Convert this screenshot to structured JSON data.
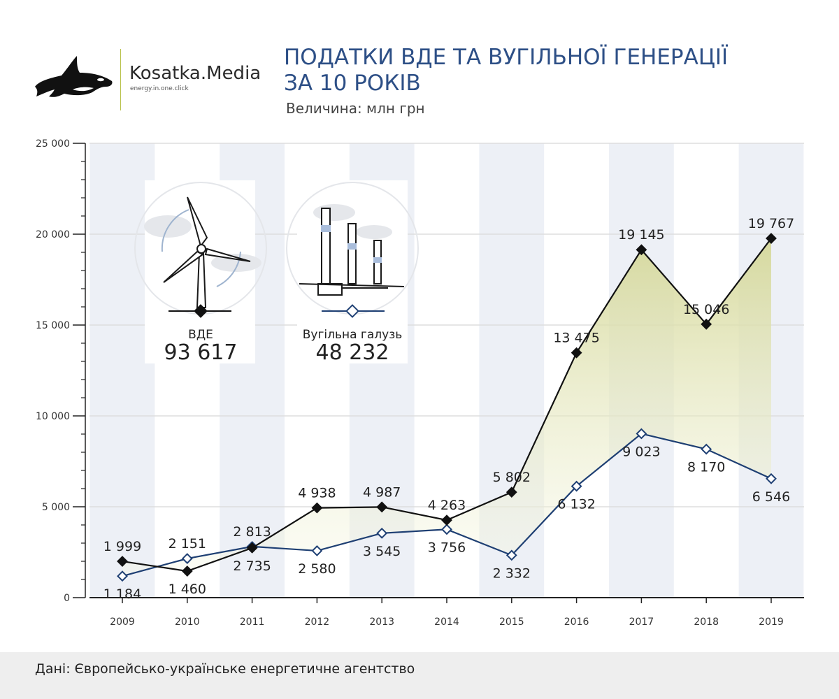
{
  "header": {
    "brand_name": "Kosatka.Media",
    "brand_tagline": "energy.in.one.click",
    "title_line1": "ПОДАТКИ ВДЕ ТА ВУГІЛЬНОЇ ГЕНЕРАЦІЇ",
    "title_line2": "ЗА 10 РОКІВ",
    "subtitle": "Величина: млн грн"
  },
  "legend": {
    "res_name": "ВДЕ",
    "res_total": "93 617",
    "coal_name": "Вугільна галузь",
    "coal_total": "48 232",
    "res_icon": "wind-turbine-icon",
    "coal_icon": "power-plant-chimneys-icon"
  },
  "footer": {
    "source": "Дані: Європейсько-українське енергетичне агентство"
  },
  "colors": {
    "res": "#111111",
    "coal": "#1e3f73",
    "title": "#2d4f86",
    "fill": "#d9dba2",
    "band": "#edf0f6",
    "logo_line": "#b8c24a"
  },
  "chart_data": {
    "type": "line",
    "categories": [
      "2009",
      "2010",
      "2011",
      "2012",
      "2013",
      "2014",
      "2015",
      "2016",
      "2017",
      "2018",
      "2019"
    ],
    "series": [
      {
        "name": "ВДЕ",
        "values": [
          1999,
          1460,
          2735,
          4938,
          4987,
          4263,
          5802,
          13475,
          19145,
          15046,
          19767
        ],
        "labels": [
          "1 999",
          "1 460",
          "2 735",
          "4 938",
          "4 987",
          "4 263",
          "5 802",
          "13 475",
          "19 145",
          "15 046",
          "19 767"
        ]
      },
      {
        "name": "Вугільна галузь",
        "values": [
          1184,
          2151,
          2813,
          2580,
          3545,
          3756,
          2332,
          6132,
          9023,
          8170,
          6546
        ],
        "labels": [
          "1 184",
          "2 151",
          "2 813",
          "2 580",
          "3 545",
          "3 756",
          "2 332",
          "6 132",
          "9 023",
          "8 170",
          "6 546"
        ]
      }
    ],
    "y_ticks": [
      0,
      5000,
      10000,
      15000,
      20000,
      25000
    ],
    "y_tick_labels": [
      "0",
      "5 000",
      "10 000",
      "15 000",
      "20 000",
      "25 000"
    ],
    "ylim": [
      0,
      25000
    ],
    "grid": true,
    "xlabel": "",
    "ylabel": ""
  }
}
